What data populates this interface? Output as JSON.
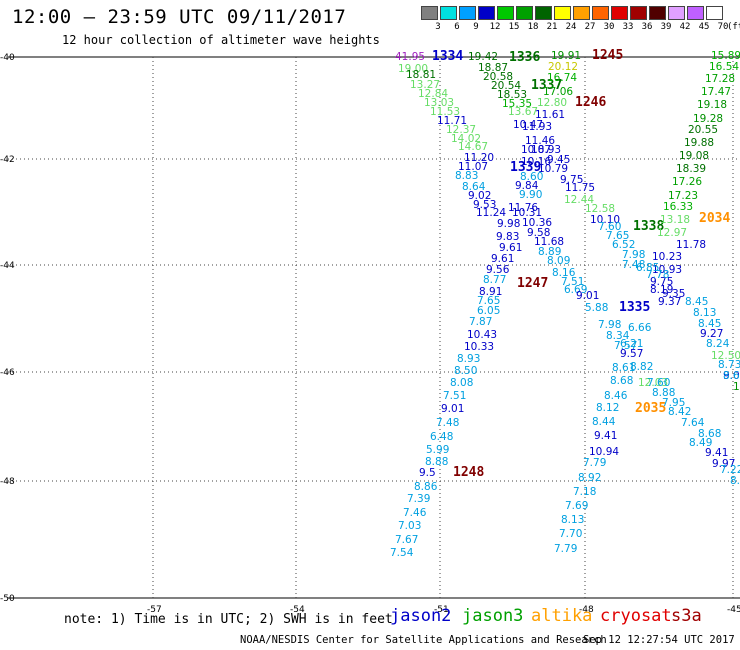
{
  "header": {
    "title": "12:00 — 23:59 UTC 09/11/2017",
    "subtitle": "12 hour collection of altimeter wave heights"
  },
  "legend": {
    "ticks": [
      "3",
      "6",
      "9",
      "12",
      "15",
      "18",
      "21",
      "24",
      "27",
      "30",
      "33",
      "36",
      "39",
      "42",
      "45",
      "70"
    ],
    "unit": "(ft)",
    "colors": [
      "#808080",
      "#00e0e0",
      "#00a0ff",
      "#0000c8",
      "#00c800",
      "#00a000",
      "#006400",
      "#ffff00",
      "#ffa000",
      "#ff6400",
      "#e00000",
      "#a00000",
      "#500000",
      "#e0a0ff",
      "#c060ff",
      "#ffffff"
    ]
  },
  "map": {
    "lat_labels": [
      "-40",
      "-42",
      "-44",
      "-46",
      "-48",
      "-50"
    ],
    "lon_labels": [
      "-57",
      "-54",
      "-51",
      "-48",
      "-45"
    ],
    "passes": [
      {
        "id": "1334",
        "color": "#0000c8"
      },
      {
        "id": "1336",
        "color": "#007000"
      },
      {
        "id": "1337",
        "color": "#007000"
      },
      {
        "id": "1245",
        "color": "#800000"
      },
      {
        "id": "1246",
        "color": "#800000"
      },
      {
        "id": "1339",
        "color": "#0000c8"
      },
      {
        "id": "1338",
        "color": "#007000"
      },
      {
        "id": "2034",
        "color": "#ff9000"
      },
      {
        "id": "1247",
        "color": "#800000"
      },
      {
        "id": "1335",
        "color": "#0000c8"
      },
      {
        "id": "2035",
        "color": "#ff9000"
      },
      {
        "id": "1248",
        "color": "#800000"
      }
    ],
    "readings": [
      {
        "v": "41.95",
        "c": "#a020c0"
      },
      {
        "v": "19.42",
        "c": "#007000"
      },
      {
        "v": "19.91",
        "c": "#009000"
      },
      {
        "v": "15.89",
        "c": "#00b000"
      },
      {
        "v": "18.87",
        "c": "#007000"
      },
      {
        "v": "20.12",
        "c": "#c8c800"
      },
      {
        "v": "16.54",
        "c": "#00b000"
      },
      {
        "v": "19.00",
        "c": "#66dd66"
      },
      {
        "v": "20.58",
        "c": "#007000"
      },
      {
        "v": "16.74",
        "c": "#00b000"
      },
      {
        "v": "17.28",
        "c": "#00a000"
      },
      {
        "v": "18.81",
        "c": "#007000"
      },
      {
        "v": "20.54",
        "c": "#007000"
      },
      {
        "v": "17.06",
        "c": "#00a000"
      },
      {
        "v": "17.47",
        "c": "#00a000"
      },
      {
        "v": "13.27",
        "c": "#66dd66"
      },
      {
        "v": "18.53",
        "c": "#007000"
      },
      {
        "v": "19.18",
        "c": "#009000"
      },
      {
        "v": "12.84",
        "c": "#66dd66"
      },
      {
        "v": "15.35",
        "c": "#00b000"
      },
      {
        "v": "12.80",
        "c": "#66dd66"
      },
      {
        "v": "19.28",
        "c": "#009000"
      },
      {
        "v": "13.03",
        "c": "#66dd66"
      },
      {
        "v": "13.67",
        "c": "#66dd66"
      },
      {
        "v": "11.61",
        "c": "#0000c8"
      },
      {
        "v": "11.53",
        "c": "#66dd66"
      },
      {
        "v": "10.47",
        "c": "#0000c8"
      },
      {
        "v": "20.55",
        "c": "#007000"
      },
      {
        "v": "11.71",
        "c": "#0000c8"
      },
      {
        "v": "11.93",
        "c": "#0000c8"
      },
      {
        "v": "19.88",
        "c": "#007000"
      },
      {
        "v": "12.37",
        "c": "#66dd66"
      },
      {
        "v": "11.46",
        "c": "#0000c8"
      },
      {
        "v": "19.08",
        "c": "#007000"
      },
      {
        "v": "14.02",
        "c": "#66dd66"
      },
      {
        "v": "10.87",
        "c": "#0000c8"
      },
      {
        "v": "18.39",
        "c": "#007000"
      },
      {
        "v": "14.67",
        "c": "#66dd66"
      },
      {
        "v": "10.93",
        "c": "#0000c8"
      },
      {
        "v": "17.26",
        "c": "#00a000"
      },
      {
        "v": "11.20",
        "c": "#0000c8"
      },
      {
        "v": "10.16",
        "c": "#0000c8"
      },
      {
        "v": "9.45",
        "c": "#0000c8"
      },
      {
        "v": "17.23",
        "c": "#00a000"
      },
      {
        "v": "11.07",
        "c": "#0000c8"
      },
      {
        "v": "10.79",
        "c": "#0000c8"
      },
      {
        "v": "16.33",
        "c": "#00b000"
      },
      {
        "v": "8.83",
        "c": "#00a0e0"
      },
      {
        "v": "8.60",
        "c": "#00a0e0"
      },
      {
        "v": "9.75",
        "c": "#0000c8"
      },
      {
        "v": "13.18",
        "c": "#66dd66"
      },
      {
        "v": "8.64",
        "c": "#00a0e0"
      },
      {
        "v": "9.84",
        "c": "#0000c8"
      },
      {
        "v": "11.75",
        "c": "#0000c8"
      },
      {
        "v": "12.97",
        "c": "#66dd66"
      },
      {
        "v": "9.02",
        "c": "#0000c8"
      },
      {
        "v": "9.90",
        "c": "#00a0e0"
      },
      {
        "v": "12.44",
        "c": "#66dd66"
      },
      {
        "v": "11.78",
        "c": "#0000c8"
      },
      {
        "v": "9.53",
        "c": "#0000c8"
      },
      {
        "v": "11.76",
        "c": "#0000c8"
      },
      {
        "v": "12.58",
        "c": "#66dd66"
      },
      {
        "v": "10.23",
        "c": "#0000c8"
      },
      {
        "v": "11.24",
        "c": "#0000c8"
      },
      {
        "v": "10.31",
        "c": "#0000c8"
      },
      {
        "v": "10.10",
        "c": "#0000c8"
      },
      {
        "v": "10.93",
        "c": "#0000c8"
      },
      {
        "v": "9.98",
        "c": "#0000c8"
      },
      {
        "v": "10.36",
        "c": "#0000c8"
      },
      {
        "v": "7.60",
        "c": "#00a0e0"
      },
      {
        "v": "9.75",
        "c": "#0000c8"
      },
      {
        "v": "9.83",
        "c": "#0000c8"
      },
      {
        "v": "9.58",
        "c": "#0000c8"
      },
      {
        "v": "7.65",
        "c": "#00a0e0"
      },
      {
        "v": "9.35",
        "c": "#0000c8"
      },
      {
        "v": "9.61",
        "c": "#0000c8"
      },
      {
        "v": "11.68",
        "c": "#0000c8"
      },
      {
        "v": "6.52",
        "c": "#00a0e0"
      },
      {
        "v": "9.37",
        "c": "#0000c8"
      },
      {
        "v": "9.61",
        "c": "#0000c8"
      },
      {
        "v": "8.89",
        "c": "#00a0e0"
      },
      {
        "v": "7.98",
        "c": "#00a0e0"
      },
      {
        "v": "8.45",
        "c": "#00a0e0"
      },
      {
        "v": "9.56",
        "c": "#0000c8"
      },
      {
        "v": "8.09",
        "c": "#00a0e0"
      },
      {
        "v": "7.48",
        "c": "#00a0e0"
      },
      {
        "v": "8.13",
        "c": "#00a0e0"
      },
      {
        "v": "8.77",
        "c": "#00a0e0"
      },
      {
        "v": "8.16",
        "c": "#00a0e0"
      },
      {
        "v": "6.85",
        "c": "#00a0e0"
      },
      {
        "v": "8.45",
        "c": "#00a0e0"
      },
      {
        "v": "8.91",
        "c": "#0000c8"
      },
      {
        "v": "7.51",
        "c": "#00a0e0"
      },
      {
        "v": "7.78",
        "c": "#00a0e0"
      },
      {
        "v": "9.27",
        "c": "#0000c8"
      },
      {
        "v": "7.65",
        "c": "#00a0e0"
      },
      {
        "v": "6.69",
        "c": "#00a0e0"
      },
      {
        "v": "8.19",
        "c": "#0000c8"
      },
      {
        "v": "8.24",
        "c": "#00a0e0"
      },
      {
        "v": "6.05",
        "c": "#00a0e0"
      },
      {
        "v": "9.01",
        "c": "#0000c8"
      },
      {
        "v": "12.50",
        "c": "#66dd66"
      },
      {
        "v": "7.87",
        "c": "#00a0e0"
      },
      {
        "v": "5.88",
        "c": "#00a0e0"
      },
      {
        "v": "8.73",
        "c": "#00a0e0"
      },
      {
        "v": "10.43",
        "c": "#0000c8"
      },
      {
        "v": "7.98",
        "c": "#00a0e0"
      },
      {
        "v": "6.66",
        "c": "#00a0e0"
      },
      {
        "v": "9.09",
        "c": "#0000c8"
      },
      {
        "v": "10.33",
        "c": "#0000c8"
      },
      {
        "v": "8.34",
        "c": "#00a0e0"
      },
      {
        "v": "6.21",
        "c": "#00a0e0"
      },
      {
        "v": "19.00",
        "c": "#009000"
      },
      {
        "v": "8.93",
        "c": "#00a0e0"
      },
      {
        "v": "7.57",
        "c": "#00a0e0"
      },
      {
        "v": "9.57",
        "c": "#0000c8"
      },
      {
        "v": "8.65",
        "c": "#00a0e0"
      },
      {
        "v": "8.50",
        "c": "#00a0e0"
      },
      {
        "v": "8.61",
        "c": "#00a0e0"
      },
      {
        "v": "8.82",
        "c": "#00a0e0"
      },
      {
        "v": "8.08",
        "c": "#00a0e0"
      },
      {
        "v": "8.68",
        "c": "#00a0e0"
      },
      {
        "v": "12.03",
        "c": "#66dd66"
      },
      {
        "v": "7.60",
        "c": "#00a0e0"
      },
      {
        "v": "7.51",
        "c": "#00a0e0"
      },
      {
        "v": "8.46",
        "c": "#00a0e0"
      },
      {
        "v": "8.88",
        "c": "#00a0e0"
      },
      {
        "v": "9.01",
        "c": "#0000c8"
      },
      {
        "v": "8.12",
        "c": "#00a0e0"
      },
      {
        "v": "7.95",
        "c": "#00a0e0"
      },
      {
        "v": "8.42",
        "c": "#00a0e0"
      },
      {
        "v": "7.48",
        "c": "#00a0e0"
      },
      {
        "v": "8.44",
        "c": "#00a0e0"
      },
      {
        "v": "7.64",
        "c": "#00a0e0"
      },
      {
        "v": "6.48",
        "c": "#00a0e0"
      },
      {
        "v": "9.41",
        "c": "#0000c8"
      },
      {
        "v": "8.68",
        "c": "#00a0e0"
      },
      {
        "v": "5.99",
        "c": "#00a0e0"
      },
      {
        "v": "10.94",
        "c": "#0000c8"
      },
      {
        "v": "8.49",
        "c": "#00a0e0"
      },
      {
        "v": "8.88",
        "c": "#00a0e0"
      },
      {
        "v": "7.79",
        "c": "#00a0e0"
      },
      {
        "v": "9.41",
        "c": "#0000c8"
      },
      {
        "v": "9.5",
        "c": "#0000c8"
      },
      {
        "v": "8.92",
        "c": "#00a0e0"
      },
      {
        "v": "9.97",
        "c": "#0000c8"
      },
      {
        "v": "7.22",
        "c": "#00a0e0"
      },
      {
        "v": "8.86",
        "c": "#00a0e0"
      },
      {
        "v": "7.18",
        "c": "#00a0e0"
      },
      {
        "v": "8.01",
        "c": "#00a0e0"
      },
      {
        "v": "7.39",
        "c": "#00a0e0"
      },
      {
        "v": "7.69",
        "c": "#00a0e0"
      },
      {
        "v": "7.46",
        "c": "#00a0e0"
      },
      {
        "v": "8.13",
        "c": "#00a0e0"
      },
      {
        "v": "7.03",
        "c": "#00a0e0"
      },
      {
        "v": "7.70",
        "c": "#00a0e0"
      },
      {
        "v": "7.67",
        "c": "#00a0e0"
      },
      {
        "v": "7.79",
        "c": "#00a0e0"
      },
      {
        "v": "7.54",
        "c": "#00a0e0"
      }
    ]
  },
  "footer": {
    "note": "note:  1) Time is in UTC;  2) SWH is in feet",
    "satellites": [
      {
        "name": "jason2",
        "color": "#0000c8"
      },
      {
        "name": "jason3",
        "color": "#00a000"
      },
      {
        "name": "altika",
        "color": "#ffa000"
      },
      {
        "name": "cryosat",
        "color": "#e00000"
      },
      {
        "name": "s3a",
        "color": "#a00000"
      }
    ],
    "credit": "NOAA/NESDIS Center for Satellite Applications and Research",
    "timestamp": "Sep 12 12:27:54 UTC 2017"
  }
}
